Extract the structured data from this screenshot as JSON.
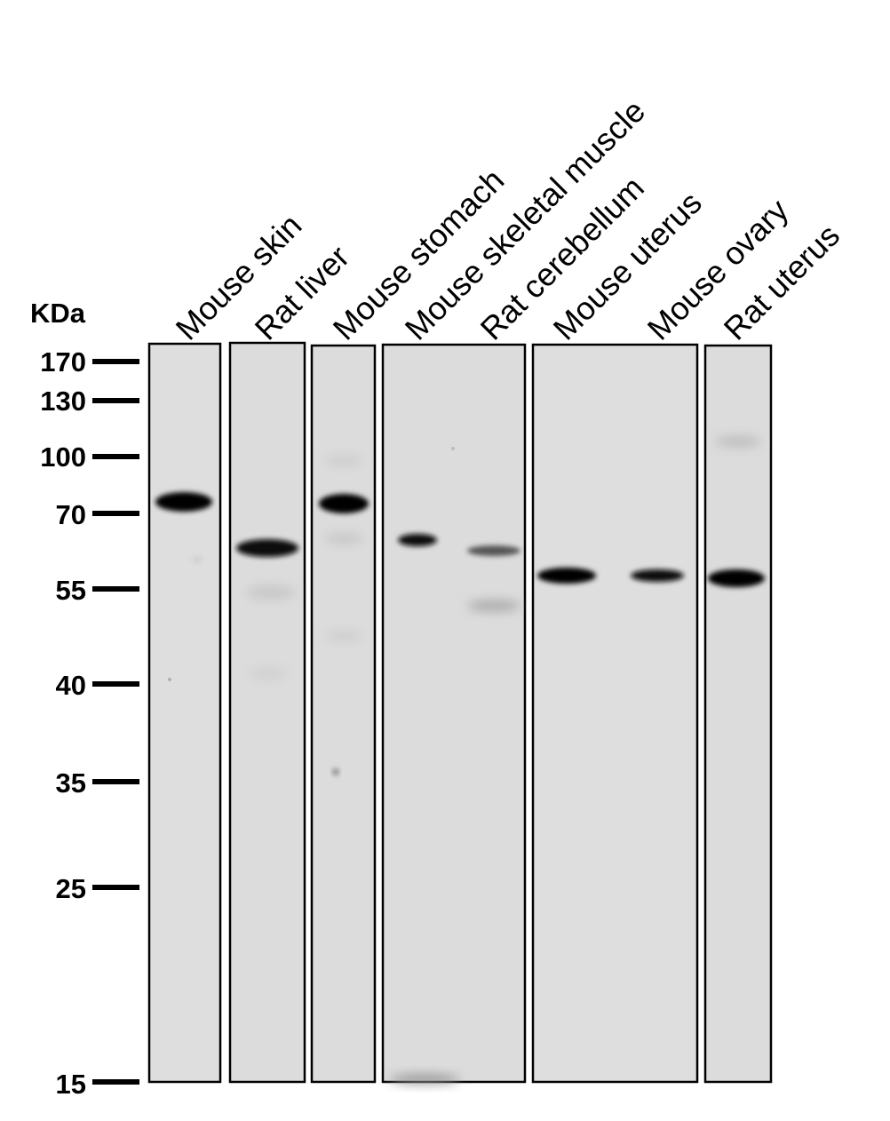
{
  "unit_label": "KDa",
  "markers": [
    {
      "label": "170"
    },
    {
      "label": "130"
    },
    {
      "label": "100"
    },
    {
      "label": "70"
    },
    {
      "label": "55"
    },
    {
      "label": "40"
    },
    {
      "label": "35"
    },
    {
      "label": "25"
    },
    {
      "label": "15"
    }
  ],
  "lanes": [
    {
      "label": "Mouse skin"
    },
    {
      "label": "Rat liver"
    },
    {
      "label": "Mouse stomach"
    },
    {
      "label": "Mouse skeletal muscle"
    },
    {
      "label": "Rat cerebellum"
    },
    {
      "label": "Mouse uterus"
    },
    {
      "label": "Mouse ovary"
    },
    {
      "label": "Rat uterus"
    }
  ]
}
